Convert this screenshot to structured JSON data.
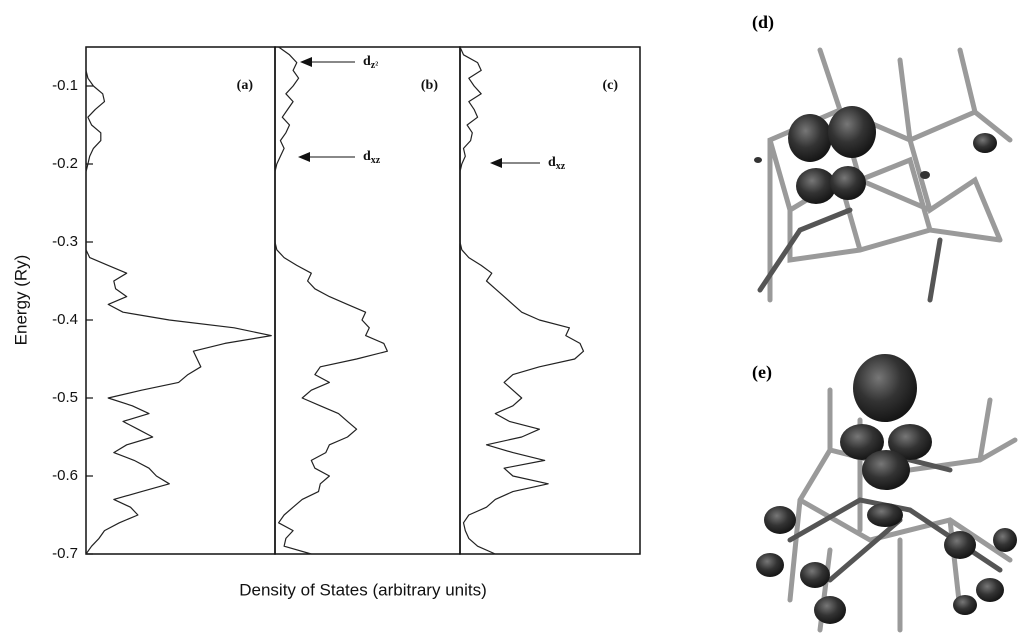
{
  "chart_data": {
    "type": "line",
    "ylabel": "Energy (Ry)",
    "xlabel": "Density of States (arbitrary units)",
    "ylim": [
      -0.7,
      -0.05
    ],
    "yticks": [
      -0.1,
      -0.2,
      -0.3,
      -0.4,
      -0.5,
      -0.6,
      -0.7
    ],
    "xlim": [
      0,
      1
    ],
    "color": "#222222",
    "y": [
      -0.05,
      -0.06,
      -0.07,
      -0.08,
      -0.09,
      -0.1,
      -0.11,
      -0.12,
      -0.13,
      -0.14,
      -0.15,
      -0.16,
      -0.17,
      -0.18,
      -0.19,
      -0.2,
      -0.21,
      -0.22,
      -0.23,
      -0.24,
      -0.25,
      -0.26,
      -0.27,
      -0.28,
      -0.29,
      -0.3,
      -0.31,
      -0.32,
      -0.33,
      -0.34,
      -0.35,
      -0.36,
      -0.37,
      -0.38,
      -0.39,
      -0.4,
      -0.41,
      -0.42,
      -0.43,
      -0.44,
      -0.45,
      -0.46,
      -0.47,
      -0.48,
      -0.49,
      -0.5,
      -0.51,
      -0.52,
      -0.53,
      -0.54,
      -0.55,
      -0.56,
      -0.57,
      -0.58,
      -0.59,
      -0.6,
      -0.61,
      -0.62,
      -0.63,
      -0.64,
      -0.65,
      -0.66,
      -0.67,
      -0.68,
      -0.69,
      -0.7
    ],
    "panels": [
      {
        "label": "(a)",
        "annotations": [],
        "values": [
          0,
          0,
          0,
          0,
          0.01,
          0.04,
          0.09,
          0.1,
          0.05,
          0.01,
          0.03,
          0.08,
          0.08,
          0.04,
          0.02,
          0.01,
          0,
          0,
          0,
          0,
          0,
          0,
          0,
          0,
          0,
          0,
          0,
          0.02,
          0.12,
          0.22,
          0.15,
          0.16,
          0.22,
          0.12,
          0.2,
          0.45,
          0.8,
          1.0,
          0.75,
          0.58,
          0.6,
          0.62,
          0.55,
          0.5,
          0.3,
          0.12,
          0.25,
          0.34,
          0.2,
          0.28,
          0.36,
          0.22,
          0.15,
          0.26,
          0.34,
          0.38,
          0.45,
          0.3,
          0.15,
          0.24,
          0.28,
          0.18,
          0.1,
          0.07,
          0.03,
          0
        ]
      },
      {
        "label": "(b)",
        "annotations": [
          {
            "text": "d",
            "sub": "z²"
          },
          {
            "text": "d",
            "sub": "xz"
          }
        ],
        "values": [
          0.02,
          0.08,
          0.12,
          0.1,
          0.13,
          0.1,
          0.06,
          0.1,
          0.07,
          0.04,
          0.08,
          0.06,
          0.03,
          0.05,
          0.03,
          0.01,
          0,
          0,
          0,
          0,
          0,
          0,
          0,
          0,
          0,
          0,
          0.01,
          0.05,
          0.12,
          0.2,
          0.18,
          0.22,
          0.3,
          0.4,
          0.5,
          0.48,
          0.52,
          0.5,
          0.6,
          0.62,
          0.45,
          0.25,
          0.22,
          0.3,
          0.2,
          0.15,
          0.25,
          0.35,
          0.4,
          0.45,
          0.4,
          0.3,
          0.28,
          0.2,
          0.22,
          0.3,
          0.25,
          0.24,
          0.15,
          0.1,
          0.05,
          0.02,
          0.1,
          0.06,
          0.05,
          0.2
        ]
      },
      {
        "label": "(c)",
        "annotations": [
          {
            "text": "d",
            "sub": "xz"
          }
        ],
        "values": [
          0,
          0.02,
          0.1,
          0.12,
          0.05,
          0.08,
          0.12,
          0.05,
          0.08,
          0.1,
          0.04,
          0.07,
          0.06,
          0.02,
          0.03,
          0.01,
          0,
          0,
          0,
          0,
          0,
          0,
          0,
          0,
          0,
          0,
          0.01,
          0.05,
          0.12,
          0.18,
          0.15,
          0.2,
          0.25,
          0.3,
          0.35,
          0.45,
          0.62,
          0.6,
          0.68,
          0.7,
          0.65,
          0.45,
          0.3,
          0.25,
          0.3,
          0.35,
          0.3,
          0.2,
          0.28,
          0.45,
          0.35,
          0.15,
          0.3,
          0.48,
          0.25,
          0.3,
          0.5,
          0.3,
          0.2,
          0.15,
          0.05,
          0.02,
          0.03,
          0.05,
          0.1,
          0.2
        ]
      }
    ]
  },
  "figures": [
    {
      "label": "(d)"
    },
    {
      "label": "(e)"
    }
  ]
}
